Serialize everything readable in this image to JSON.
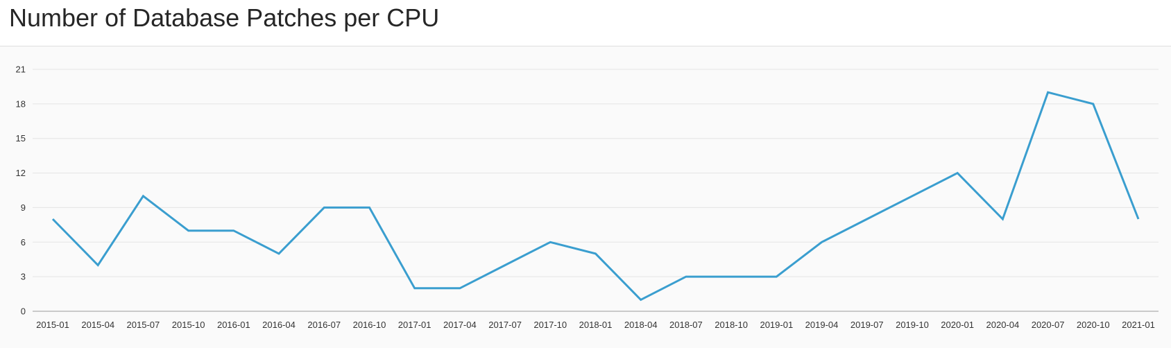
{
  "page": {
    "title": "Number of Database Patches per CPU"
  },
  "colors": {
    "line": "#3a9ecf",
    "grid": "#e4e4e4",
    "axis": "#999999",
    "panel_bg": "#fafafa",
    "text": "#333333"
  },
  "chart_data": {
    "type": "line",
    "title": "Number of Database Patches per CPU",
    "xlabel": "",
    "ylabel": "",
    "ylim": [
      0,
      21
    ],
    "yticks": [
      0,
      3,
      6,
      9,
      12,
      15,
      18,
      21
    ],
    "grid": true,
    "x": [
      "2015-01",
      "2015-04",
      "2015-07",
      "2015-10",
      "2016-01",
      "2016-04",
      "2016-07",
      "2016-10",
      "2017-01",
      "2017-04",
      "2017-07",
      "2017-10",
      "2018-01",
      "2018-04",
      "2018-07",
      "2018-10",
      "2019-01",
      "2019-04",
      "2019-07",
      "2019-10",
      "2020-01",
      "2020-04",
      "2020-07",
      "2020-10",
      "2021-01"
    ],
    "series": [
      {
        "values": [
          8,
          4,
          10,
          7,
          7,
          5,
          9,
          9,
          2,
          2,
          4,
          6,
          5,
          1,
          3,
          3,
          3,
          6,
          8,
          10,
          12,
          8,
          19,
          18,
          8
        ]
      }
    ]
  }
}
